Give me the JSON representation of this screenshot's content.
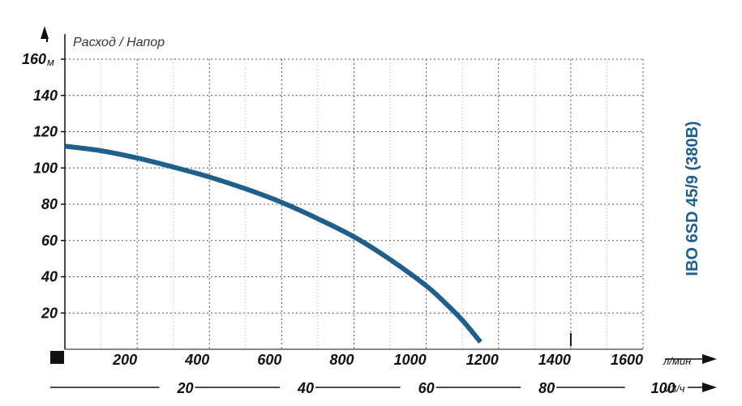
{
  "colors": {
    "curve": "#1f5f8b",
    "title": "#1f5f8b",
    "axis": "#111111"
  },
  "chart_data": {
    "type": "line",
    "title": "IBO 6SD 45/9 (380В)",
    "ylabel": "Расход / Напор",
    "y_unit": "м",
    "x_unit": "л/мин",
    "x2_unit": "м3/ч",
    "xlim": [
      0,
      1600
    ],
    "ylim": [
      0,
      160
    ],
    "y_ticks": [
      20,
      40,
      60,
      80,
      100,
      120,
      140,
      160
    ],
    "y_tick_labels": [
      "20",
      "40",
      "60",
      "80",
      "100",
      "120",
      "140",
      "160"
    ],
    "x_ticks": [
      200,
      400,
      600,
      800,
      1000,
      1200,
      1400,
      1600
    ],
    "x_tick_labels": [
      "200",
      "400",
      "600",
      "800",
      "1000",
      "1200",
      "1400",
      "1600"
    ],
    "x2_ticks": [
      20,
      40,
      60,
      80,
      100
    ],
    "x2_tick_labels": [
      "20",
      "40",
      "60",
      "80",
      "100"
    ],
    "grid": true,
    "series": [
      {
        "x": [
          0,
          100,
          200,
          300,
          400,
          500,
          600,
          700,
          800,
          900,
          1000,
          1050,
          1100,
          1150
        ],
        "y": [
          112,
          109.5,
          105.5,
          100.5,
          95,
          88.5,
          81,
          72,
          62,
          49.5,
          35,
          26,
          16,
          4
        ]
      }
    ]
  }
}
